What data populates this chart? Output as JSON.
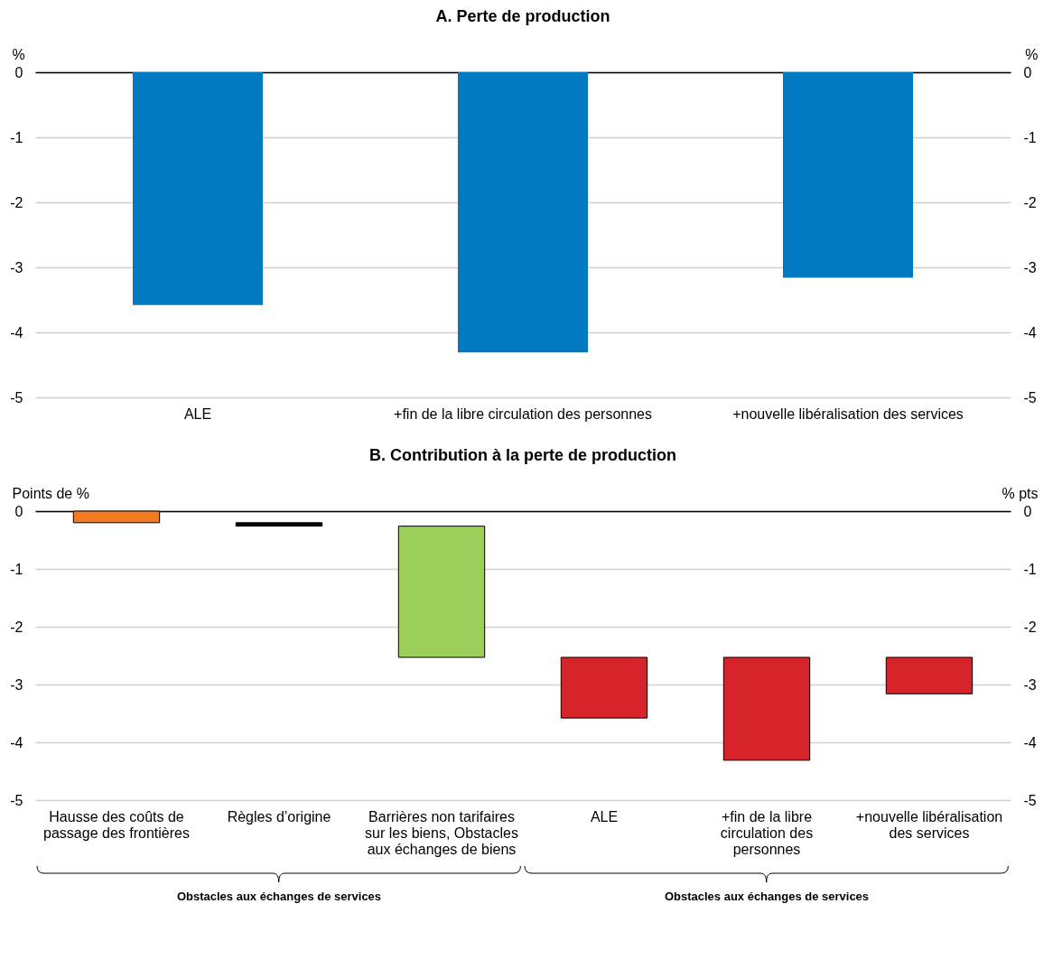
{
  "chart_data": [
    {
      "type": "bar",
      "title": "A. Perte de production",
      "ylabel": "%",
      "y2label": "%",
      "categories": [
        "ALE",
        "+fin de la libre circulation des personnes",
        "+nouvelle libéralisation des services"
      ],
      "series": [
        {
          "color": "#0079c1",
          "values": [
            -3.58,
            -4.31,
            -3.16
          ]
        }
      ],
      "ylim": [
        -5,
        0
      ],
      "yticks": [
        -5,
        -4,
        -3,
        -2,
        -1,
        0
      ],
      "y2lim": [
        -5,
        0
      ],
      "y2ticks": [
        -5,
        -4,
        -3,
        -2,
        -1,
        0
      ],
      "grid": "y"
    },
    {
      "type": "bar",
      "title": "B. Contribution à la perte de production",
      "ylabel": "Points de %",
      "y2label": "% pts",
      "categories": [
        "Hausse des coûts de passage des frontières",
        "Règles d’origine",
        "Barrières non tarifaires sur les biens, Obstacles aux échanges de biens",
        "ALE",
        "+fin de la libre circulation des personnes",
        "+nouvelle libéralisation des services"
      ],
      "series": [
        {
          "colors": [
            "#f47920",
            "#000000",
            "#9ccf5a",
            "#d9232a",
            "#d9232a",
            "#d9232a"
          ],
          "values": [
            -0.2,
            -0.06,
            -2.27,
            -1.05,
            -1.78,
            -0.63
          ],
          "base": [
            0,
            -0.2,
            -0.26,
            -2.53,
            -2.53,
            -2.53
          ]
        }
      ],
      "ylim": [
        -5,
        0
      ],
      "yticks": [
        -5,
        -4,
        -3,
        -2,
        -1,
        0
      ],
      "y2lim": [
        -5,
        0
      ],
      "y2ticks": [
        -5,
        -4,
        -3,
        -2,
        -1,
        0
      ],
      "grid": "y",
      "annotations": [
        "Obstacles aux échanges de services",
        "Obstacles aux échanges de services"
      ]
    }
  ]
}
